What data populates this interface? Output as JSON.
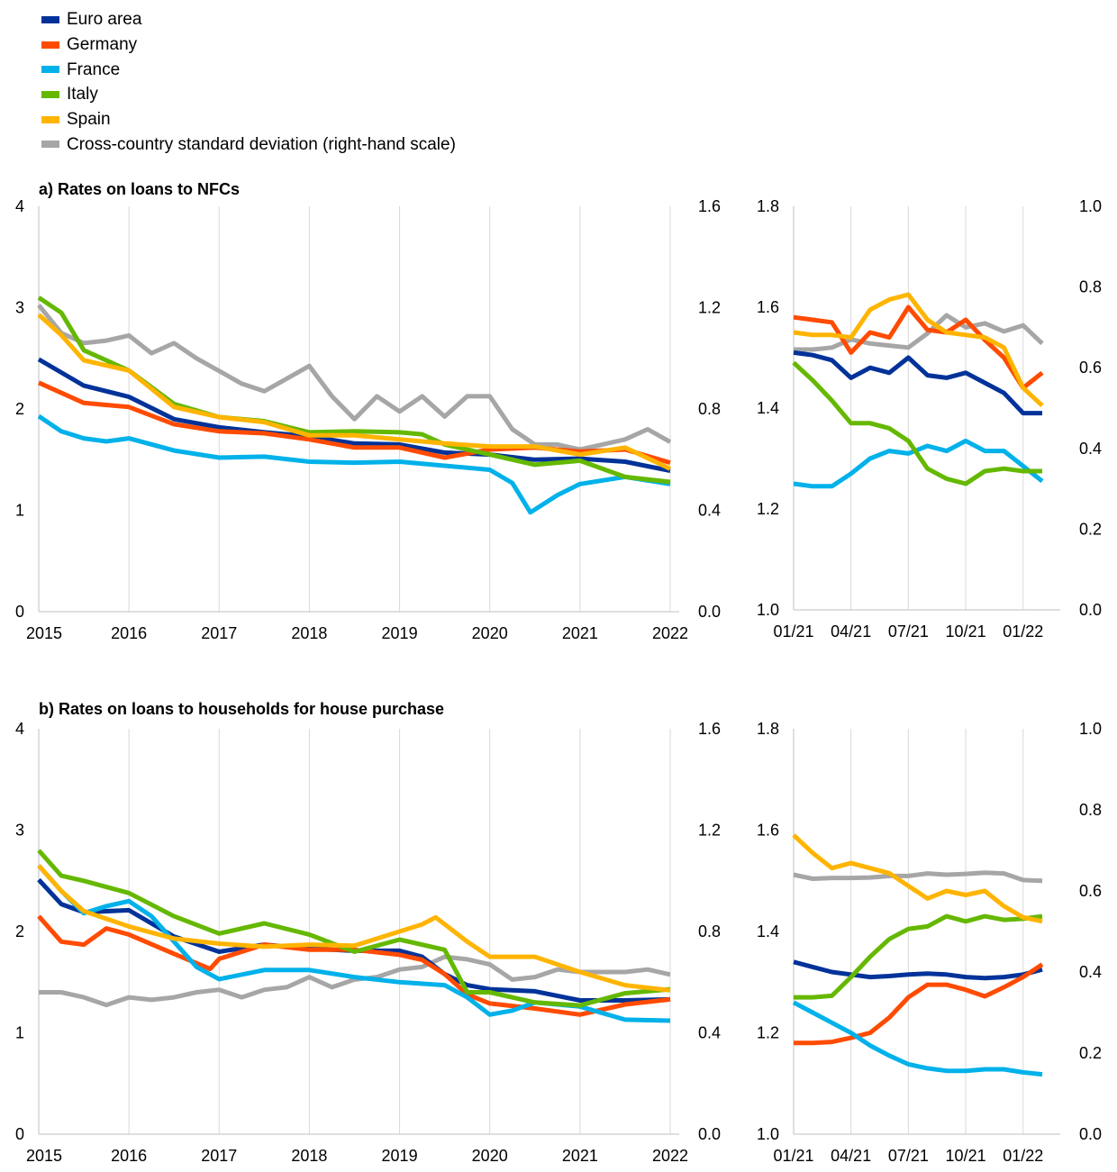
{
  "legend": [
    {
      "label": "Euro area",
      "color": "#003299"
    },
    {
      "label": "Germany",
      "color": "#ff4b00"
    },
    {
      "label": "France",
      "color": "#00b1ea"
    },
    {
      "label": "Italy",
      "color": "#65b800"
    },
    {
      "label": "Spain",
      "color": "#ffb400"
    },
    {
      "label": "Cross-country standard deviation (right-hand scale)",
      "color": "#a6a6a6"
    }
  ],
  "chart_data": [
    {
      "panel": "a-long",
      "type": "line",
      "title": "a) Rates on loans to NFCs",
      "ylim": [
        0,
        4
      ],
      "y_ticks": [
        "0",
        "1",
        "2",
        "3",
        "4"
      ],
      "y2lim": [
        0.0,
        1.6
      ],
      "y2_ticks": [
        "0.0",
        "0.4",
        "0.8",
        "1.2",
        "1.6"
      ],
      "xlim": [
        2015,
        2022.1
      ],
      "x_ticks": [
        "2015",
        "2016",
        "2017",
        "2018",
        "2019",
        "2020",
        "2021",
        "2022"
      ],
      "grid": "vertical",
      "series": [
        {
          "name": "Euro area",
          "x": [
            2015,
            2015.5,
            2016,
            2016.5,
            2017,
            2017.5,
            2018,
            2018.5,
            2019,
            2019.5,
            2020,
            2020.5,
            2021,
            2021.5,
            2022
          ],
          "values": [
            2.49,
            2.23,
            2.12,
            1.9,
            1.82,
            1.77,
            1.73,
            1.66,
            1.65,
            1.57,
            1.55,
            1.5,
            1.51,
            1.48,
            1.39
          ]
        },
        {
          "name": "Germany",
          "x": [
            2015,
            2015.5,
            2016,
            2016.5,
            2017,
            2017.5,
            2018,
            2018.5,
            2019,
            2019.5,
            2020,
            2020.5,
            2021,
            2021.5,
            2022
          ],
          "values": [
            2.26,
            2.06,
            2.02,
            1.85,
            1.78,
            1.76,
            1.7,
            1.62,
            1.62,
            1.52,
            1.6,
            1.62,
            1.58,
            1.6,
            1.47
          ]
        },
        {
          "name": "France",
          "x": [
            2015,
            2015.25,
            2015.5,
            2015.75,
            2016,
            2016.5,
            2017,
            2017.5,
            2018,
            2018.5,
            2019,
            2019.5,
            2020,
            2020.25,
            2020.45,
            2020.75,
            2021,
            2021.5,
            2022
          ],
          "values": [
            1.93,
            1.78,
            1.71,
            1.68,
            1.71,
            1.59,
            1.52,
            1.53,
            1.48,
            1.47,
            1.48,
            1.44,
            1.4,
            1.27,
            0.98,
            1.15,
            1.26,
            1.33,
            1.26
          ]
        },
        {
          "name": "Italy",
          "x": [
            2015,
            2015.25,
            2015.5,
            2016,
            2016.5,
            2017,
            2017.5,
            2018,
            2018.5,
            2019,
            2019.25,
            2019.5,
            2020,
            2020.5,
            2021,
            2021.5,
            2022
          ],
          "values": [
            3.1,
            2.95,
            2.58,
            2.38,
            2.05,
            1.92,
            1.88,
            1.77,
            1.78,
            1.77,
            1.75,
            1.65,
            1.55,
            1.45,
            1.49,
            1.33,
            1.28
          ]
        },
        {
          "name": "Spain",
          "x": [
            2015,
            2015.25,
            2015.5,
            2016,
            2016.5,
            2017,
            2017.5,
            2018,
            2018.5,
            2019,
            2019.5,
            2020,
            2020.5,
            2021,
            2021.5,
            2022
          ],
          "values": [
            2.93,
            2.73,
            2.48,
            2.38,
            2.02,
            1.92,
            1.87,
            1.74,
            1.74,
            1.7,
            1.66,
            1.63,
            1.63,
            1.55,
            1.62,
            1.41
          ]
        },
        {
          "name": "Cross-country standard deviation (right-hand scale)",
          "axis": "right",
          "x": [
            2015,
            2015.25,
            2015.5,
            2015.75,
            2016,
            2016.25,
            2016.5,
            2016.75,
            2017,
            2017.25,
            2017.5,
            2017.75,
            2018,
            2018.25,
            2018.5,
            2018.75,
            2019,
            2019.25,
            2019.5,
            2019.75,
            2020,
            2020.25,
            2020.5,
            2020.75,
            2021,
            2021.25,
            2021.5,
            2021.75,
            2022
          ],
          "values": [
            1.21,
            1.1,
            1.06,
            1.07,
            1.09,
            1.02,
            1.06,
            1.0,
            0.95,
            0.9,
            0.87,
            0.92,
            0.97,
            0.85,
            0.76,
            0.85,
            0.79,
            0.85,
            0.77,
            0.85,
            0.85,
            0.72,
            0.66,
            0.66,
            0.64,
            0.66,
            0.68,
            0.72,
            0.67
          ]
        }
      ]
    },
    {
      "panel": "a-zoom",
      "type": "line",
      "ylim": [
        1.0,
        1.8
      ],
      "y_ticks": [
        "1.0",
        "1.2",
        "1.4",
        "1.6",
        "1.8"
      ],
      "y2lim": [
        0.0,
        1.0
      ],
      "y2_ticks": [
        "0.0",
        "0.2",
        "0.4",
        "0.6",
        "0.8",
        "1.0"
      ],
      "x_ticks": [
        "01/21",
        "04/21",
        "07/21",
        "10/21",
        "01/22"
      ],
      "grid": "vertical",
      "series": [
        {
          "name": "Euro area",
          "values": [
            1.51,
            1.505,
            1.495,
            1.46,
            1.48,
            1.47,
            1.5,
            1.465,
            1.46,
            1.47,
            1.45,
            1.43,
            1.39,
            1.39
          ]
        },
        {
          "name": "Germany",
          "values": [
            1.58,
            1.575,
            1.57,
            1.51,
            1.55,
            1.54,
            1.6,
            1.555,
            1.55,
            1.575,
            1.535,
            1.5,
            1.44,
            1.47
          ]
        },
        {
          "name": "France",
          "values": [
            1.25,
            1.245,
            1.245,
            1.27,
            1.3,
            1.315,
            1.31,
            1.325,
            1.315,
            1.335,
            1.315,
            1.315,
            1.285,
            1.255
          ]
        },
        {
          "name": "Italy",
          "values": [
            1.49,
            1.455,
            1.415,
            1.37,
            1.37,
            1.36,
            1.335,
            1.28,
            1.26,
            1.25,
            1.275,
            1.28,
            1.275,
            1.275
          ]
        },
        {
          "name": "Spain",
          "values": [
            1.55,
            1.545,
            1.545,
            1.54,
            1.595,
            1.615,
            1.625,
            1.575,
            1.55,
            1.545,
            1.54,
            1.52,
            1.44,
            1.405
          ]
        },
        {
          "name": "Cross-country standard deviation (right-hand scale)",
          "axis": "right",
          "values": [
            0.645,
            0.645,
            0.65,
            0.67,
            0.66,
            0.655,
            0.65,
            0.685,
            0.73,
            0.7,
            0.71,
            0.69,
            0.705,
            0.66
          ]
        }
      ]
    },
    {
      "panel": "b-long",
      "type": "line",
      "title": "b) Rates on loans to households for house purchase",
      "ylim": [
        0,
        4
      ],
      "y_ticks": [
        "0",
        "1",
        "2",
        "3",
        "4"
      ],
      "y2lim": [
        0.0,
        1.6
      ],
      "y2_ticks": [
        "0.0",
        "0.4",
        "0.8",
        "1.2",
        "1.6"
      ],
      "xlim": [
        2015,
        2022.1
      ],
      "x_ticks": [
        "2015",
        "2016",
        "2017",
        "2018",
        "2019",
        "2020",
        "2021",
        "2022"
      ],
      "grid": "vertical",
      "series": [
        {
          "name": "Euro area",
          "x": [
            2015,
            2015.25,
            2015.5,
            2016,
            2016.5,
            2017,
            2017.5,
            2018,
            2018.5,
            2019,
            2019.25,
            2019.5,
            2019.75,
            2020,
            2020.5,
            2021,
            2021.5,
            2022
          ],
          "values": [
            2.51,
            2.27,
            2.19,
            2.21,
            1.95,
            1.8,
            1.87,
            1.83,
            1.81,
            1.81,
            1.75,
            1.58,
            1.47,
            1.43,
            1.41,
            1.32,
            1.32,
            1.33
          ]
        },
        {
          "name": "Germany",
          "x": [
            2015,
            2015.25,
            2015.5,
            2015.75,
            2016,
            2016.5,
            2016.9,
            2017,
            2017.5,
            2018,
            2018.5,
            2019,
            2019.25,
            2019.5,
            2019.75,
            2020,
            2020.5,
            2021,
            2021.5,
            2022
          ],
          "values": [
            2.15,
            1.9,
            1.87,
            2.03,
            1.97,
            1.78,
            1.63,
            1.73,
            1.87,
            1.82,
            1.82,
            1.77,
            1.72,
            1.58,
            1.38,
            1.29,
            1.24,
            1.18,
            1.28,
            1.33
          ]
        },
        {
          "name": "France",
          "x": [
            2015,
            2015.25,
            2015.5,
            2015.75,
            2016,
            2016.25,
            2016.5,
            2016.75,
            2017,
            2017.5,
            2018,
            2018.5,
            2019,
            2019.5,
            2019.75,
            2020,
            2020.25,
            2020.5,
            2021,
            2021.5,
            2022
          ],
          "values": [
            2.65,
            2.4,
            2.18,
            2.25,
            2.3,
            2.15,
            1.9,
            1.65,
            1.53,
            1.62,
            1.62,
            1.55,
            1.5,
            1.47,
            1.35,
            1.18,
            1.22,
            1.3,
            1.26,
            1.13,
            1.12
          ]
        },
        {
          "name": "Italy",
          "x": [
            2015,
            2015.25,
            2015.5,
            2016,
            2016.5,
            2017,
            2017.5,
            2018,
            2018.5,
            2019,
            2019.5,
            2019.75,
            2020,
            2020.5,
            2021,
            2021.5,
            2022
          ],
          "values": [
            2.8,
            2.55,
            2.5,
            2.38,
            2.15,
            1.98,
            2.08,
            1.97,
            1.8,
            1.92,
            1.82,
            1.4,
            1.4,
            1.3,
            1.27,
            1.39,
            1.43
          ]
        },
        {
          "name": "Spain",
          "x": [
            2015,
            2015.25,
            2015.5,
            2016,
            2016.5,
            2017,
            2017.5,
            2018,
            2018.5,
            2019,
            2019.25,
            2019.4,
            2019.75,
            2020,
            2020.5,
            2021,
            2021.5,
            2022
          ],
          "values": [
            2.65,
            2.4,
            2.2,
            2.05,
            1.93,
            1.88,
            1.85,
            1.87,
            1.86,
            2.0,
            2.07,
            2.14,
            1.9,
            1.75,
            1.75,
            1.6,
            1.47,
            1.42
          ]
        },
        {
          "name": "Cross-country standard deviation (right-hand scale)",
          "axis": "right",
          "x": [
            2015,
            2015.25,
            2015.5,
            2015.75,
            2016,
            2016.25,
            2016.5,
            2016.75,
            2017,
            2017.25,
            2017.5,
            2017.75,
            2018,
            2018.25,
            2018.5,
            2018.75,
            2019,
            2019.25,
            2019.5,
            2019.75,
            2020,
            2020.25,
            2020.5,
            2020.75,
            2021,
            2021.25,
            2021.5,
            2021.75,
            2022
          ],
          "values": [
            0.56,
            0.56,
            0.54,
            0.51,
            0.54,
            0.53,
            0.54,
            0.56,
            0.57,
            0.54,
            0.57,
            0.58,
            0.62,
            0.58,
            0.61,
            0.62,
            0.65,
            0.66,
            0.7,
            0.69,
            0.67,
            0.61,
            0.62,
            0.65,
            0.64,
            0.64,
            0.64,
            0.65,
            0.63
          ]
        }
      ]
    },
    {
      "panel": "b-zoom",
      "type": "line",
      "ylim": [
        1.0,
        1.8
      ],
      "y_ticks": [
        "1.0",
        "1.2",
        "1.4",
        "1.6",
        "1.8"
      ],
      "y2lim": [
        0.0,
        1.0
      ],
      "y2_ticks": [
        "0.0",
        "0.2",
        "0.4",
        "0.6",
        "0.8",
        "1.0"
      ],
      "x_ticks": [
        "01/21",
        "04/21",
        "07/21",
        "10/21",
        "01/22"
      ],
      "grid": "vertical",
      "series": [
        {
          "name": "Euro area",
          "values": [
            1.34,
            1.33,
            1.32,
            1.315,
            1.31,
            1.312,
            1.315,
            1.317,
            1.315,
            1.31,
            1.308,
            1.31,
            1.315,
            1.325
          ]
        },
        {
          "name": "Germany",
          "values": [
            1.18,
            1.18,
            1.182,
            1.19,
            1.2,
            1.23,
            1.27,
            1.295,
            1.295,
            1.285,
            1.272,
            1.29,
            1.31,
            1.335
          ]
        },
        {
          "name": "France",
          "values": [
            1.26,
            1.24,
            1.22,
            1.2,
            1.175,
            1.155,
            1.138,
            1.13,
            1.125,
            1.125,
            1.128,
            1.128,
            1.122,
            1.118
          ]
        },
        {
          "name": "Italy",
          "values": [
            1.27,
            1.27,
            1.273,
            1.31,
            1.35,
            1.385,
            1.405,
            1.41,
            1.43,
            1.42,
            1.43,
            1.423,
            1.425,
            1.43
          ]
        },
        {
          "name": "Spain",
          "values": [
            1.59,
            1.555,
            1.525,
            1.535,
            1.525,
            1.515,
            1.49,
            1.465,
            1.48,
            1.472,
            1.48,
            1.45,
            1.428,
            1.42
          ]
        },
        {
          "name": "Cross-country standard deviation (right-hand scale)",
          "axis": "right",
          "values": [
            0.64,
            0.63,
            0.632,
            0.632,
            0.633,
            0.637,
            0.637,
            0.643,
            0.64,
            0.642,
            0.645,
            0.643,
            0.627,
            0.625
          ]
        }
      ]
    }
  ]
}
